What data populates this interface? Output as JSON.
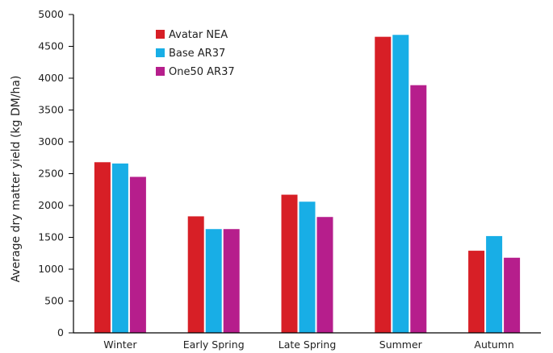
{
  "chart_data": {
    "type": "bar",
    "title": "",
    "xlabel": "",
    "ylabel": "Average dry matter yield (kg DM/ha)",
    "ylim": [
      0,
      5000
    ],
    "yticks": [
      0,
      500,
      1000,
      1500,
      2000,
      2500,
      3000,
      3500,
      4000,
      4500,
      5000
    ],
    "categories": [
      "Winter",
      "Early Spring",
      "Late Spring",
      "Summer",
      "Autumn"
    ],
    "series": [
      {
        "name": "Avatar NEA",
        "color": "#d71f26",
        "values": [
          2680,
          1830,
          2170,
          4650,
          1290
        ]
      },
      {
        "name": "Base AR37",
        "color": "#18aee6",
        "values": [
          2660,
          1630,
          2060,
          4680,
          1520
        ]
      },
      {
        "name": "One50 AR37",
        "color": "#b61e8c",
        "values": [
          2450,
          1630,
          1820,
          3890,
          1180
        ]
      }
    ],
    "legend_position": "top-left",
    "grid": false
  }
}
